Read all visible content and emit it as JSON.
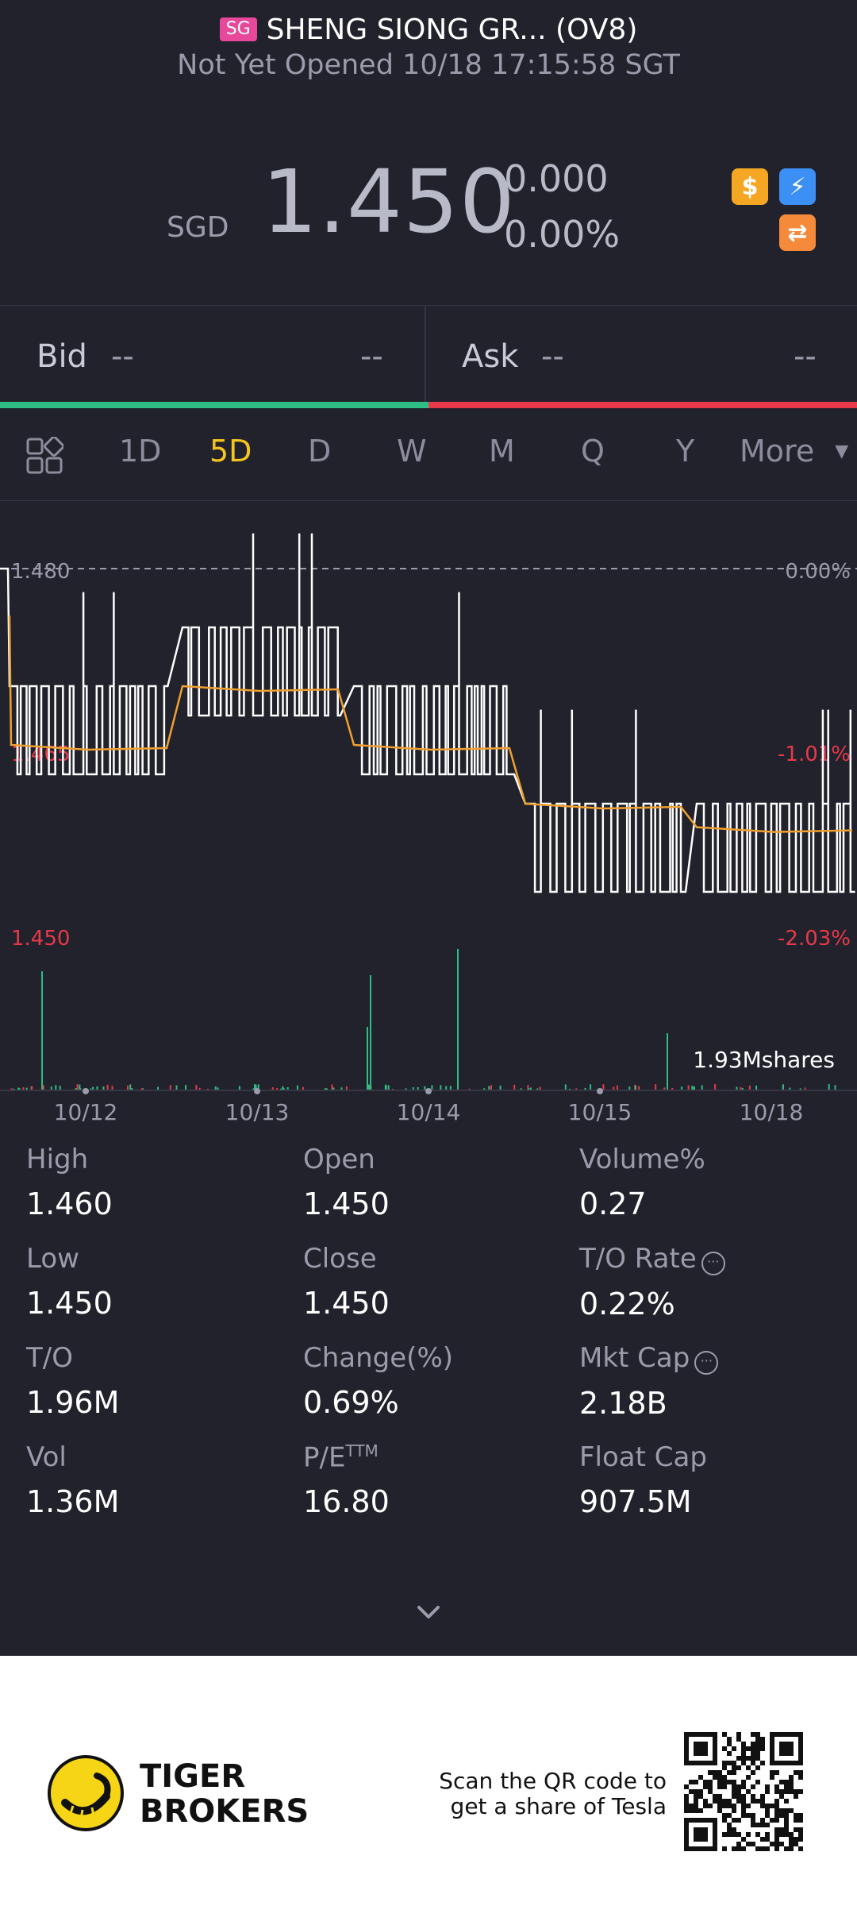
{
  "header": {
    "market_badge": "SG",
    "title": "SHENG SIONG GR... (OV8)",
    "status": "Not Yet Opened 10/18 17:15:58 SGT"
  },
  "quote": {
    "currency": "SGD",
    "price": "1.450",
    "change": "0.000",
    "change_pct": "0.00%",
    "icons": [
      "dollar-icon",
      "lightning-icon",
      "exchange-icon"
    ]
  },
  "bid_ask": {
    "bid_label": "Bid",
    "bid_price": "--",
    "bid_size": "--",
    "ask_label": "Ask",
    "ask_price": "--",
    "ask_size": "--"
  },
  "tabs": {
    "items": [
      "1D",
      "5D",
      "D",
      "W",
      "M",
      "Q",
      "Y"
    ],
    "active": "5D",
    "more": "More"
  },
  "chart": {
    "y_top_label": "1.480",
    "y_mid_label": "1.465",
    "y_bottom_label": "1.450",
    "pct_top": "0.00%",
    "pct_mid": "-1.01%",
    "pct_bottom": "-2.03%",
    "volume_label": "1.93Mshares",
    "x_labels": [
      "10/12",
      "10/13",
      "10/14",
      "10/15",
      "10/18"
    ]
  },
  "chart_data": {
    "type": "line",
    "x": [
      "10/12",
      "10/13",
      "10/14",
      "10/15",
      "10/18"
    ],
    "ylim": [
      1.45,
      1.48
    ],
    "reference_close": 1.48,
    "series": [
      {
        "values": [
          1.465,
          1.47,
          1.465,
          1.455,
          1.455
        ]
      },
      {
        "values": [
          1.465,
          1.47,
          1.465,
          1.46,
          1.458
        ]
      }
    ]
  },
  "stats": {
    "high_label": "High",
    "high": "1.460",
    "open_label": "Open",
    "open": "1.450",
    "volume_pct_label": "Volume%",
    "volume_pct": "0.27",
    "low_label": "Low",
    "low": "1.450",
    "close_label": "Close",
    "close": "1.450",
    "to_rate_label": "T/O Rate",
    "to_rate": "0.22%",
    "to_label": "T/O",
    "to": "1.96M",
    "change_pct_label": "Change(%)",
    "change_pct": "0.69%",
    "mkt_cap_label": "Mkt Cap",
    "mkt_cap": "2.18B",
    "vol_label": "Vol",
    "vol": "1.36M",
    "pe_label": "P/E",
    "pe_sup": "TTM",
    "pe": "16.80",
    "float_cap_label": "Float Cap",
    "float_cap": "907.5M"
  },
  "footer": {
    "brand_line1": "TIGER",
    "brand_line2": "BROKERS",
    "scan_line1": "Scan the QR code to",
    "scan_line2": "get a share of Tesla"
  },
  "colors": {
    "background": "#21222c",
    "active_tab": "#f5c51f",
    "green": "#2ebd85",
    "red": "#e8394a",
    "avg_line": "#f0a030"
  }
}
